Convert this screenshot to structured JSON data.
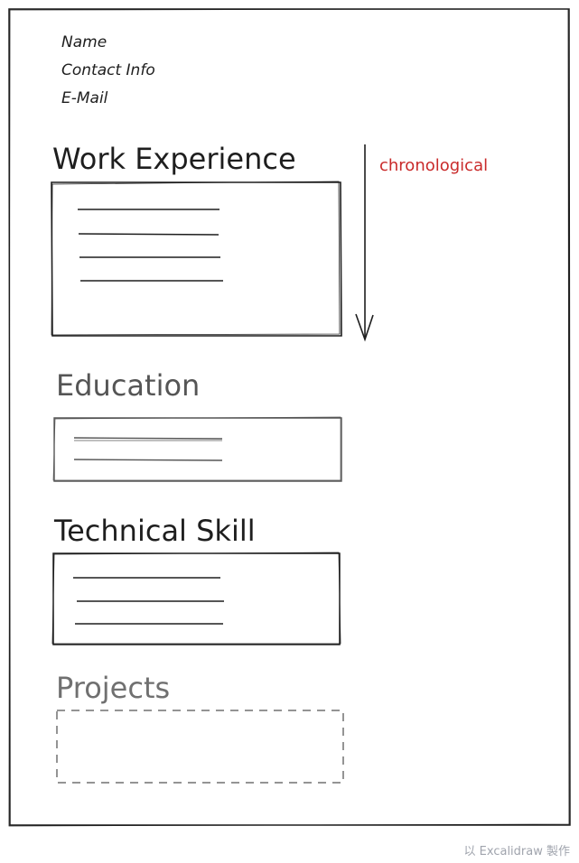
{
  "header": {
    "name": "Name",
    "contact": "Contact Info",
    "email": "E-Mail"
  },
  "sections": {
    "work_experience": "Work Experience",
    "education": "Education",
    "technical_skill": "Technical Skill",
    "projects": "Projects"
  },
  "annotation": {
    "label": "chronological",
    "color": "#c92a2a"
  },
  "footer": {
    "credit": "以 Excalidraw 製作"
  }
}
